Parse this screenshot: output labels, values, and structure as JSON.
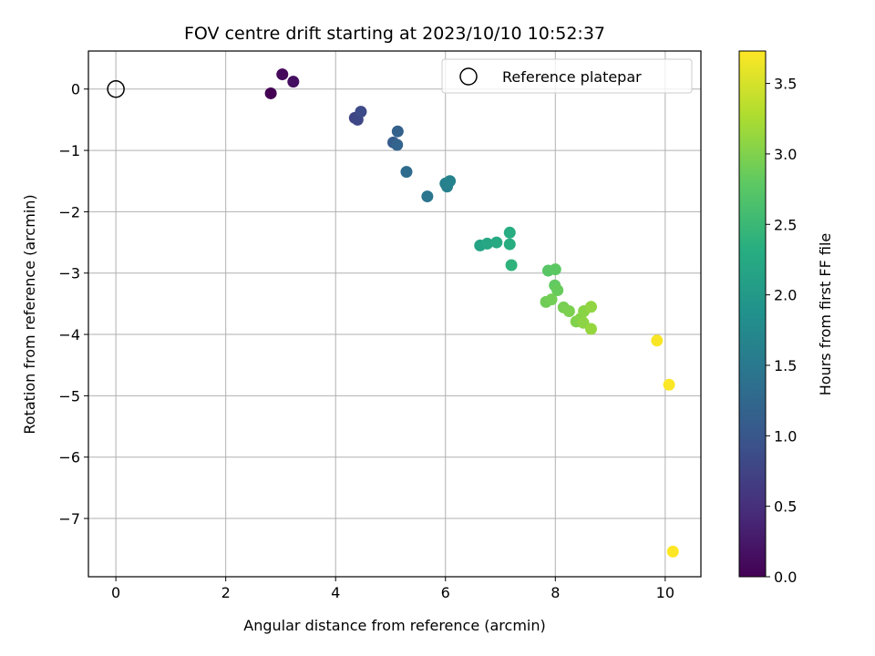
{
  "chart_data": {
    "type": "scatter",
    "title": "FOV centre drift starting at 2023/10/10 10:52:37",
    "xlabel": "Angular distance from reference (arcmin)",
    "ylabel": "Rotation from reference (arcmin)",
    "xlim": [
      -0.5,
      10.65
    ],
    "ylim": [
      -7.95,
      0.62
    ],
    "xticks": [
      0,
      2,
      4,
      6,
      8,
      10
    ],
    "yticks": [
      0,
      -1,
      -2,
      -3,
      -4,
      -5,
      -6,
      -7
    ],
    "grid": true,
    "legend": {
      "position": "top-right",
      "label": "Reference platepar"
    },
    "reference_point": {
      "x": 0,
      "y": 0
    },
    "colorbar": {
      "label": "Hours from first FF file",
      "colormap": "viridis",
      "range": [
        0,
        3.73
      ],
      "ticks": [
        0.0,
        0.5,
        1.0,
        1.5,
        2.0,
        2.5,
        3.0,
        3.5
      ],
      "tick_labels": [
        "0.0",
        "0.5",
        "1.0",
        "1.5",
        "2.0",
        "2.5",
        "3.0",
        "3.5"
      ]
    },
    "points": [
      {
        "x": 2.82,
        "y": -0.07,
        "hours": 0.0
      },
      {
        "x": 3.03,
        "y": 0.24,
        "hours": 0.08
      },
      {
        "x": 3.23,
        "y": 0.12,
        "hours": 0.15
      },
      {
        "x": 4.35,
        "y": -0.47,
        "hours": 0.75
      },
      {
        "x": 4.4,
        "y": -0.5,
        "hours": 0.8
      },
      {
        "x": 4.46,
        "y": -0.37,
        "hours": 0.85
      },
      {
        "x": 5.05,
        "y": -0.87,
        "hours": 1.1
      },
      {
        "x": 5.13,
        "y": -0.69,
        "hours": 1.15
      },
      {
        "x": 5.12,
        "y": -0.91,
        "hours": 1.2
      },
      {
        "x": 5.29,
        "y": -1.35,
        "hours": 1.3
      },
      {
        "x": 5.67,
        "y": -1.75,
        "hours": 1.45
      },
      {
        "x": 6.0,
        "y": -1.54,
        "hours": 1.6
      },
      {
        "x": 6.03,
        "y": -1.59,
        "hours": 1.62
      },
      {
        "x": 6.08,
        "y": -1.5,
        "hours": 1.66
      },
      {
        "x": 6.63,
        "y": -2.55,
        "hours": 2.15
      },
      {
        "x": 6.76,
        "y": -2.52,
        "hours": 2.2
      },
      {
        "x": 6.93,
        "y": -2.5,
        "hours": 2.25
      },
      {
        "x": 7.17,
        "y": -2.34,
        "hours": 2.3
      },
      {
        "x": 7.17,
        "y": -2.53,
        "hours": 2.32
      },
      {
        "x": 7.2,
        "y": -2.87,
        "hours": 2.4
      },
      {
        "x": 7.87,
        "y": -2.96,
        "hours": 2.75
      },
      {
        "x": 8.0,
        "y": -2.94,
        "hours": 2.78
      },
      {
        "x": 7.99,
        "y": -3.2,
        "hours": 2.82
      },
      {
        "x": 8.04,
        "y": -3.28,
        "hours": 2.85
      },
      {
        "x": 7.83,
        "y": -3.47,
        "hours": 2.9
      },
      {
        "x": 7.93,
        "y": -3.43,
        "hours": 2.92
      },
      {
        "x": 8.15,
        "y": -3.56,
        "hours": 2.95
      },
      {
        "x": 8.25,
        "y": -3.62,
        "hours": 2.97
      },
      {
        "x": 8.38,
        "y": -3.79,
        "hours": 3.0
      },
      {
        "x": 8.46,
        "y": -3.74,
        "hours": 3.02
      },
      {
        "x": 8.52,
        "y": -3.62,
        "hours": 3.05
      },
      {
        "x": 8.51,
        "y": -3.81,
        "hours": 3.07
      },
      {
        "x": 8.65,
        "y": -3.55,
        "hours": 3.1
      },
      {
        "x": 8.65,
        "y": -3.91,
        "hours": 3.12
      },
      {
        "x": 9.85,
        "y": -4.1,
        "hours": 3.7
      },
      {
        "x": 10.07,
        "y": -4.82,
        "hours": 3.72
      },
      {
        "x": 10.14,
        "y": -7.54,
        "hours": 3.73
      }
    ]
  }
}
